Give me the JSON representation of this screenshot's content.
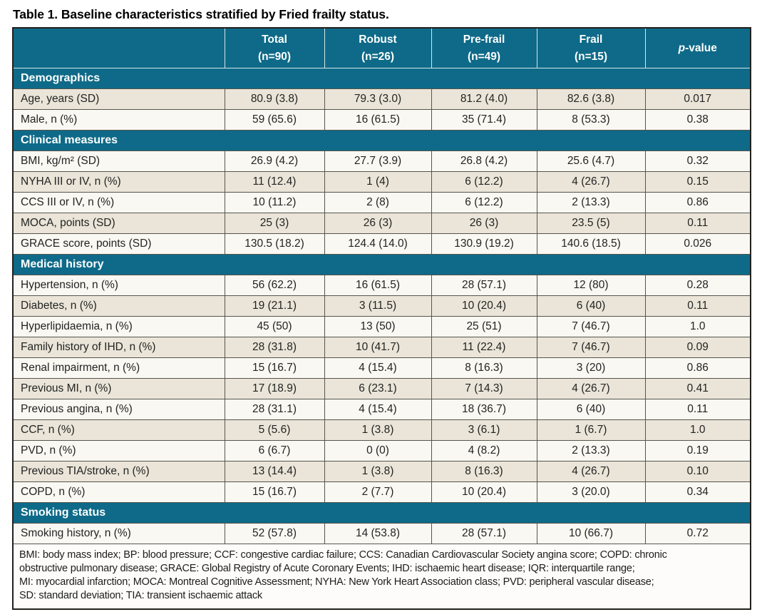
{
  "title": "Table 1. Baseline characteristics stratified by Fried frailty status.",
  "colors": {
    "teal": "#0e6a88",
    "row-shaded": "#eae5d8",
    "row-plain": "#faf8f2",
    "footnote-bg": "#fdfcfa",
    "grid": "#55544e",
    "outer": "#22211e",
    "header-divider": "#d8e5e9",
    "text": "#232323",
    "header-text": "#ffffff"
  },
  "table": {
    "columns": [
      {
        "key": "total",
        "title": "Total",
        "sub": "(n=90)",
        "italic_chars": 0
      },
      {
        "key": "robust",
        "title": "Robust",
        "sub": "(n=26)",
        "italic_chars": 0
      },
      {
        "key": "pre-frail",
        "title": "Pre-frail",
        "sub": "(n=49)",
        "italic_chars": 0
      },
      {
        "key": "frail",
        "title": "Frail",
        "sub": "(n=15)",
        "italic_chars": 0
      },
      {
        "key": "p-value",
        "title": "p-value",
        "sub": "",
        "italic_chars": 1
      }
    ],
    "sections": [
      {
        "header": "Demographics",
        "rows": [
          {
            "label": "Age, years (SD)",
            "values": [
              "80.9 (3.8)",
              "79.3 (3.0)",
              "81.2 (4.0)",
              "82.6 (3.8)",
              "0.017"
            ],
            "shaded": true
          },
          {
            "label": "Male, n (%)",
            "values": [
              "59 (65.6)",
              "16 (61.5)",
              "35 (71.4)",
              "8 (53.3)",
              "0.38"
            ],
            "shaded": false
          }
        ]
      },
      {
        "header": "Clinical measures",
        "rows": [
          {
            "label": "BMI, kg/m² (SD)",
            "values": [
              "26.9 (4.2)",
              "27.7 (3.9)",
              "26.8 (4.2)",
              "25.6 (4.7)",
              "0.32"
            ],
            "shaded": false
          },
          {
            "label": "NYHA III or IV, n (%)",
            "values": [
              "11 (12.4)",
              "1 (4)",
              "6 (12.2)",
              "4 (26.7)",
              "0.15"
            ],
            "shaded": true
          },
          {
            "label": "CCS III or IV, n (%)",
            "values": [
              "10 (11.2)",
              "2 (8)",
              "6 (12.2)",
              "2 (13.3)",
              "0.86"
            ],
            "shaded": false
          },
          {
            "label": "MOCA, points (SD)",
            "values": [
              "25 (3)",
              "26 (3)",
              "26 (3)",
              "23.5 (5)",
              "0.11"
            ],
            "shaded": true
          },
          {
            "label": "GRACE score, points (SD)",
            "values": [
              "130.5 (18.2)",
              "124.4 (14.0)",
              "130.9 (19.2)",
              "140.6 (18.5)",
              "0.026"
            ],
            "shaded": false
          }
        ]
      },
      {
        "header": "Medical history",
        "rows": [
          {
            "label": "Hypertension, n (%)",
            "values": [
              "56 (62.2)",
              "16 (61.5)",
              "28 (57.1)",
              "12 (80)",
              "0.28"
            ],
            "shaded": false
          },
          {
            "label": "Diabetes, n (%)",
            "values": [
              "19 (21.1)",
              "3 (11.5)",
              "10 (20.4)",
              "6 (40)",
              "0.11"
            ],
            "shaded": true
          },
          {
            "label": "Hyperlipidaemia, n (%)",
            "values": [
              "45 (50)",
              "13 (50)",
              "25 (51)",
              "7 (46.7)",
              "1.0"
            ],
            "shaded": false
          },
          {
            "label": "Family history of IHD, n (%)",
            "values": [
              "28 (31.8)",
              "10 (41.7)",
              "11 (22.4)",
              "7 (46.7)",
              "0.09"
            ],
            "shaded": true
          },
          {
            "label": "Renal impairment, n (%)",
            "values": [
              "15 (16.7)",
              "4 (15.4)",
              "8 (16.3)",
              "3 (20)",
              "0.86"
            ],
            "shaded": false
          },
          {
            "label": "Previous MI, n (%)",
            "values": [
              "17 (18.9)",
              "6 (23.1)",
              "7 (14.3)",
              "4 (26.7)",
              "0.41"
            ],
            "shaded": true
          },
          {
            "label": "Previous angina, n (%)",
            "values": [
              "28 (31.1)",
              "4 (15.4)",
              "18 (36.7)",
              "6 (40)",
              "0.11"
            ],
            "shaded": false
          },
          {
            "label": "CCF, n (%)",
            "values": [
              "5 (5.6)",
              "1 (3.8)",
              "3 (6.1)",
              "1 (6.7)",
              "1.0"
            ],
            "shaded": true
          },
          {
            "label": "PVD, n (%)",
            "values": [
              "6 (6.7)",
              "0 (0)",
              "4 (8.2)",
              "2 (13.3)",
              "0.19"
            ],
            "shaded": false
          },
          {
            "label": "Previous TIA/stroke, n (%)",
            "values": [
              "13 (14.4)",
              "1 (3.8)",
              "8 (16.3)",
              "4 (26.7)",
              "0.10"
            ],
            "shaded": true
          },
          {
            "label": "COPD, n (%)",
            "values": [
              "15 (16.7)",
              "2 (7.7)",
              "10 (20.4)",
              "3 (20.0)",
              "0.34"
            ],
            "shaded": false
          }
        ]
      },
      {
        "header": "Smoking status",
        "rows": [
          {
            "label": "Smoking history, n (%)",
            "values": [
              "52 (57.8)",
              "14 (53.8)",
              "28 (57.1)",
              "10 (66.7)",
              "0.72"
            ],
            "shaded": false
          }
        ]
      }
    ],
    "footnote_lines": [
      "BMI: body mass index; BP: blood pressure; CCF: congestive cardiac failure; CCS: Canadian Cardiovascular Society angina score; COPD: chronic",
      "obstructive pulmonary disease; GRACE: Global Registry of Acute Coronary Events; IHD: ischaemic heart disease; IQR: interquartile range;",
      "MI: myocardial infarction; MOCA: Montreal Cognitive Assessment; NYHA: New York Heart Association class; PVD: peripheral vascular disease;",
      "SD: standard deviation; TIA: transient ischaemic attack"
    ]
  }
}
